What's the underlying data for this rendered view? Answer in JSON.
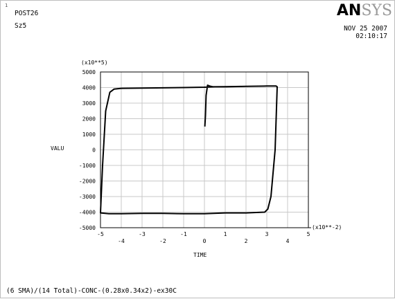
{
  "window": {
    "number": "1"
  },
  "header": {
    "program": "POST26",
    "plot_name": "Sz5",
    "date": "NOV 25 2007",
    "time": "02:10:17"
  },
  "logo": {
    "text_bold": "AN",
    "text_gray": "SYS"
  },
  "footer": {
    "text": "(6 SMA)/(14 Total)-CONC-(0.28x0.34x2)-ex30C"
  },
  "chart_data": {
    "type": "line",
    "xlabel": "TIME",
    "ylabel": "VALU",
    "x_multiplier": "(x10**-2)",
    "y_multiplier": "(x10**5)",
    "xlim": [
      -5,
      5
    ],
    "ylim": [
      -5000,
      5000
    ],
    "x_ticks": [
      -5,
      -4,
      -3,
      -2,
      -1,
      0,
      1,
      2,
      3,
      4,
      5
    ],
    "y_ticks": [
      5000,
      4000,
      3000,
      2000,
      1000,
      0,
      -1000,
      -2000,
      -3000,
      -4000,
      -5000
    ],
    "grid": true,
    "series": [
      {
        "color": "#000000",
        "x": [
          0.02,
          0.05,
          0.08,
          0.15,
          0.25,
          0.4,
          1.0,
          2.0,
          3.0,
          3.45,
          3.5,
          3.4,
          3.2,
          3.05,
          2.9,
          2.0,
          1.0,
          0.0,
          -1.0,
          -2.0,
          -3.0,
          -4.0,
          -4.6,
          -5.0,
          -4.9,
          -4.75,
          -4.55,
          -4.35,
          -4.0,
          -3.0,
          -2.0,
          -1.0,
          0.0,
          0.5,
          1.0,
          2.0,
          3.0,
          3.4
        ],
        "y": [
          1500,
          2200,
          3500,
          4150,
          4100,
          4050,
          4050,
          4080,
          4100,
          4100,
          4050,
          0,
          -3000,
          -3800,
          -4000,
          -4050,
          -4050,
          -4100,
          -4100,
          -4080,
          -4080,
          -4100,
          -4100,
          -4050,
          -1000,
          2500,
          3700,
          3900,
          3950,
          3970,
          3980,
          4000,
          4020,
          4050,
          4060,
          4080,
          4100,
          4100
        ]
      }
    ]
  }
}
